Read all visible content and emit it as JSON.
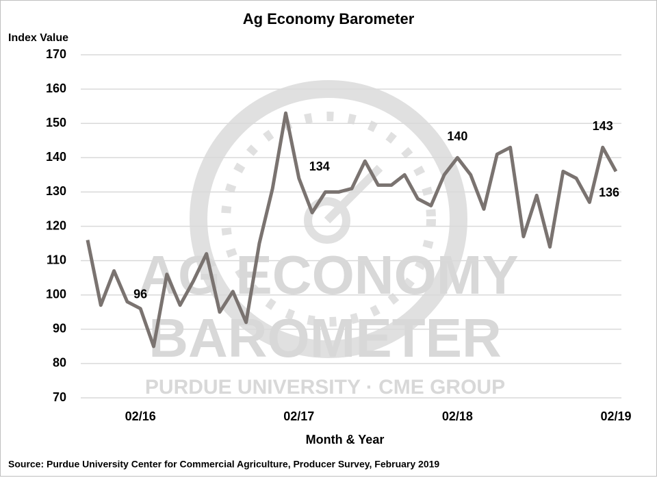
{
  "chart_data": {
    "type": "line",
    "title": "Ag Economy Barometer",
    "y_label": "Index Value",
    "x_label": "Month & Year",
    "source": "Source: Purdue University Center for Commercial Agriculture, Producer Survey, February 2019",
    "watermark": {
      "line1": "AG ECONOMY",
      "line2": "BAROMETER",
      "line3": "PURDUE UNIVERSITY  ·  CME GROUP"
    },
    "categories": [
      null,
      null,
      null,
      null,
      "02/16",
      null,
      null,
      null,
      null,
      null,
      null,
      null,
      null,
      null,
      null,
      null,
      "02/17",
      null,
      null,
      null,
      null,
      null,
      null,
      null,
      null,
      null,
      null,
      null,
      "02/18",
      null,
      null,
      null,
      null,
      null,
      null,
      null,
      null,
      null,
      null,
      null,
      "02/19"
    ],
    "series": [
      {
        "name": "Index Value",
        "color": "#7a7370",
        "values": [
          116,
          97,
          107,
          98,
          96,
          85,
          106,
          97,
          104,
          112,
          95,
          101,
          92,
          115,
          131,
          153,
          134,
          124,
          130,
          130,
          131,
          139,
          132,
          132,
          135,
          128,
          126,
          135,
          140,
          135,
          125,
          141,
          143,
          117,
          129,
          114,
          136,
          134,
          127,
          143,
          136
        ]
      }
    ],
    "ylim": [
      70,
      170
    ],
    "yticks": [
      70,
      80,
      90,
      100,
      110,
      120,
      130,
      140,
      150,
      160,
      170
    ],
    "grid": true
  }
}
